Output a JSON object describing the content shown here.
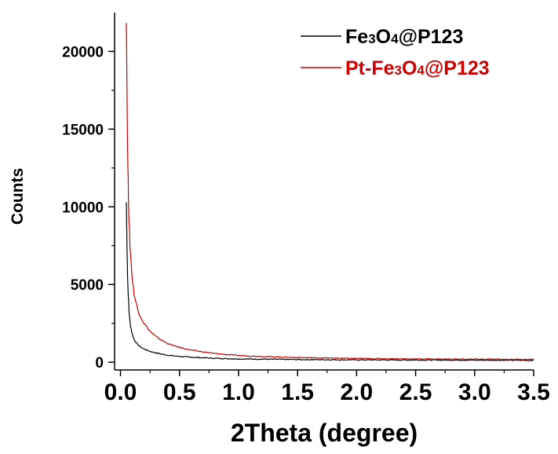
{
  "chart_data": {
    "type": "line",
    "title": "",
    "xlabel": "2Theta (degree)",
    "ylabel": "Counts",
    "xlim": [
      -0.05,
      3.5
    ],
    "ylim": [
      -500,
      22500
    ],
    "x_ticks": [
      "0.0",
      "0.5",
      "1.0",
      "1.5",
      "2.0",
      "2.5",
      "3.0",
      "3.5"
    ],
    "y_ticks": [
      "0",
      "5000",
      "10000",
      "15000",
      "20000"
    ],
    "legend_position": "top-right",
    "series": [
      {
        "name_parts": {
          "a": "Fe",
          "s1": "3",
          "b": "O",
          "s2": "4",
          "c": "@P123"
        },
        "color": "#000000",
        "x": [
          0.05,
          0.06,
          0.07,
          0.08,
          0.1,
          0.12,
          0.15,
          0.2,
          0.25,
          0.3,
          0.4,
          0.5,
          0.6,
          0.8,
          1.0,
          1.5,
          2.0,
          2.5,
          3.0,
          3.5
        ],
        "y": [
          10300,
          5600,
          3600,
          2600,
          1800,
          1400,
          1100,
          850,
          700,
          600,
          450,
          370,
          320,
          250,
          210,
          170,
          150,
          140,
          130,
          120
        ]
      },
      {
        "name_parts": {
          "a": "Pt-Fe",
          "s1": "3",
          "b": "O",
          "s2": "4",
          "c": "@P123"
        },
        "color": "#cc0000",
        "x": [
          0.05,
          0.06,
          0.07,
          0.08,
          0.1,
          0.12,
          0.15,
          0.2,
          0.25,
          0.3,
          0.4,
          0.5,
          0.6,
          0.8,
          1.0,
          1.5,
          2.0,
          2.5,
          3.0,
          3.5
        ],
        "y": [
          22500,
          14000,
          9800,
          7600,
          5400,
          4200,
          3300,
          2500,
          2000,
          1650,
          1200,
          950,
          780,
          560,
          430,
          300,
          240,
          210,
          190,
          180
        ]
      }
    ]
  }
}
